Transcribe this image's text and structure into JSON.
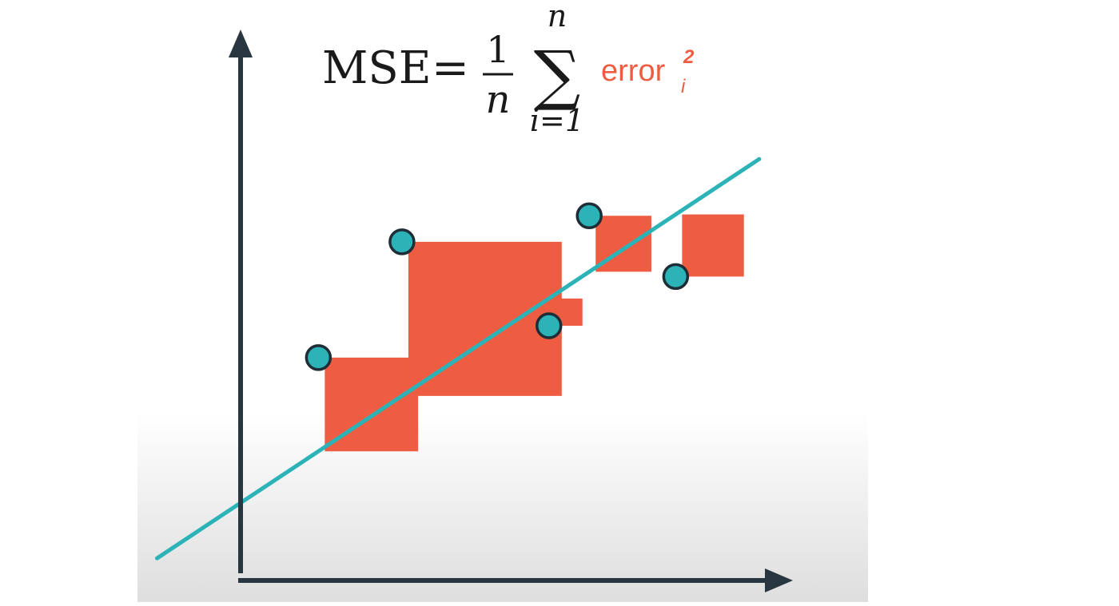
{
  "formula": {
    "lhs": "MSE",
    "equals": "=",
    "numerator": "1",
    "denominator": "n",
    "sum_symbol": "∑",
    "upper_limit": "n",
    "lower_limit": "i=1",
    "term": "error",
    "term_subscript": "i",
    "term_superscript": "2"
  },
  "colors": {
    "axis": "#283640",
    "regression_line": "#2bb3b8",
    "points": "#2bb3b8",
    "point_outline": "#1e2d36",
    "error_squares": "#ee5c41",
    "error_text": "#ee5c41",
    "formula_text": "#1a1a1a",
    "floor_gradient_top": "#ffffff",
    "floor_gradient_bottom": "#dedede"
  },
  "chart_data": {
    "type": "scatter",
    "regression_line": {
      "slope": 0.66,
      "intercept": 1.34,
      "x_range": [
        -1.45,
        9.0
      ]
    },
    "points": [
      {
        "x": 1.35,
        "y": 3.85
      },
      {
        "x": 2.8,
        "y": 5.85
      },
      {
        "x": 5.35,
        "y": 4.4
      },
      {
        "x": 6.05,
        "y": 6.3
      },
      {
        "x": 7.55,
        "y": 5.25
      }
    ],
    "xlim": [
      -1.45,
      9.0
    ],
    "ylim": [
      0,
      9.0
    ]
  }
}
